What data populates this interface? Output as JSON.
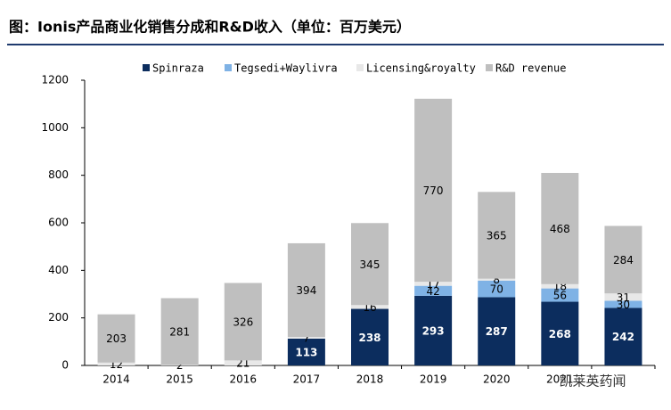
{
  "chart_data": {
    "type": "stacked_bar",
    "title": "图：Ionis产品商业化销售分成和R&D收入（单位：百万美元）",
    "categories": [
      "2014",
      "2015",
      "2016",
      "2017",
      "2018",
      "2019",
      "2020",
      "2021",
      null
    ],
    "series": [
      {
        "name": "Spinraza",
        "color": "#0c2d5e",
        "values": [
          null,
          null,
          null,
          113,
          238,
          293,
          287,
          268,
          242
        ]
      },
      {
        "name": "Tegsedi+Waylivra",
        "color": "#7fb2e5",
        "values": [
          null,
          null,
          null,
          null,
          null,
          42,
          70,
          56,
          30
        ]
      },
      {
        "name": "Licensing&royalty",
        "color": "#e8e8e8",
        "values": [
          12,
          2,
          21,
          7,
          16,
          17,
          8,
          18,
          31
        ]
      },
      {
        "name": "R&D revenue",
        "color": "#bfbfbf",
        "values": [
          203,
          281,
          326,
          394,
          345,
          770,
          365,
          468,
          284
        ]
      }
    ],
    "ylim": [
      0,
      1200
    ],
    "yticks": [
      0,
      200,
      400,
      600,
      800,
      1000,
      1200
    ],
    "watermark": "凯莱英药闻"
  }
}
